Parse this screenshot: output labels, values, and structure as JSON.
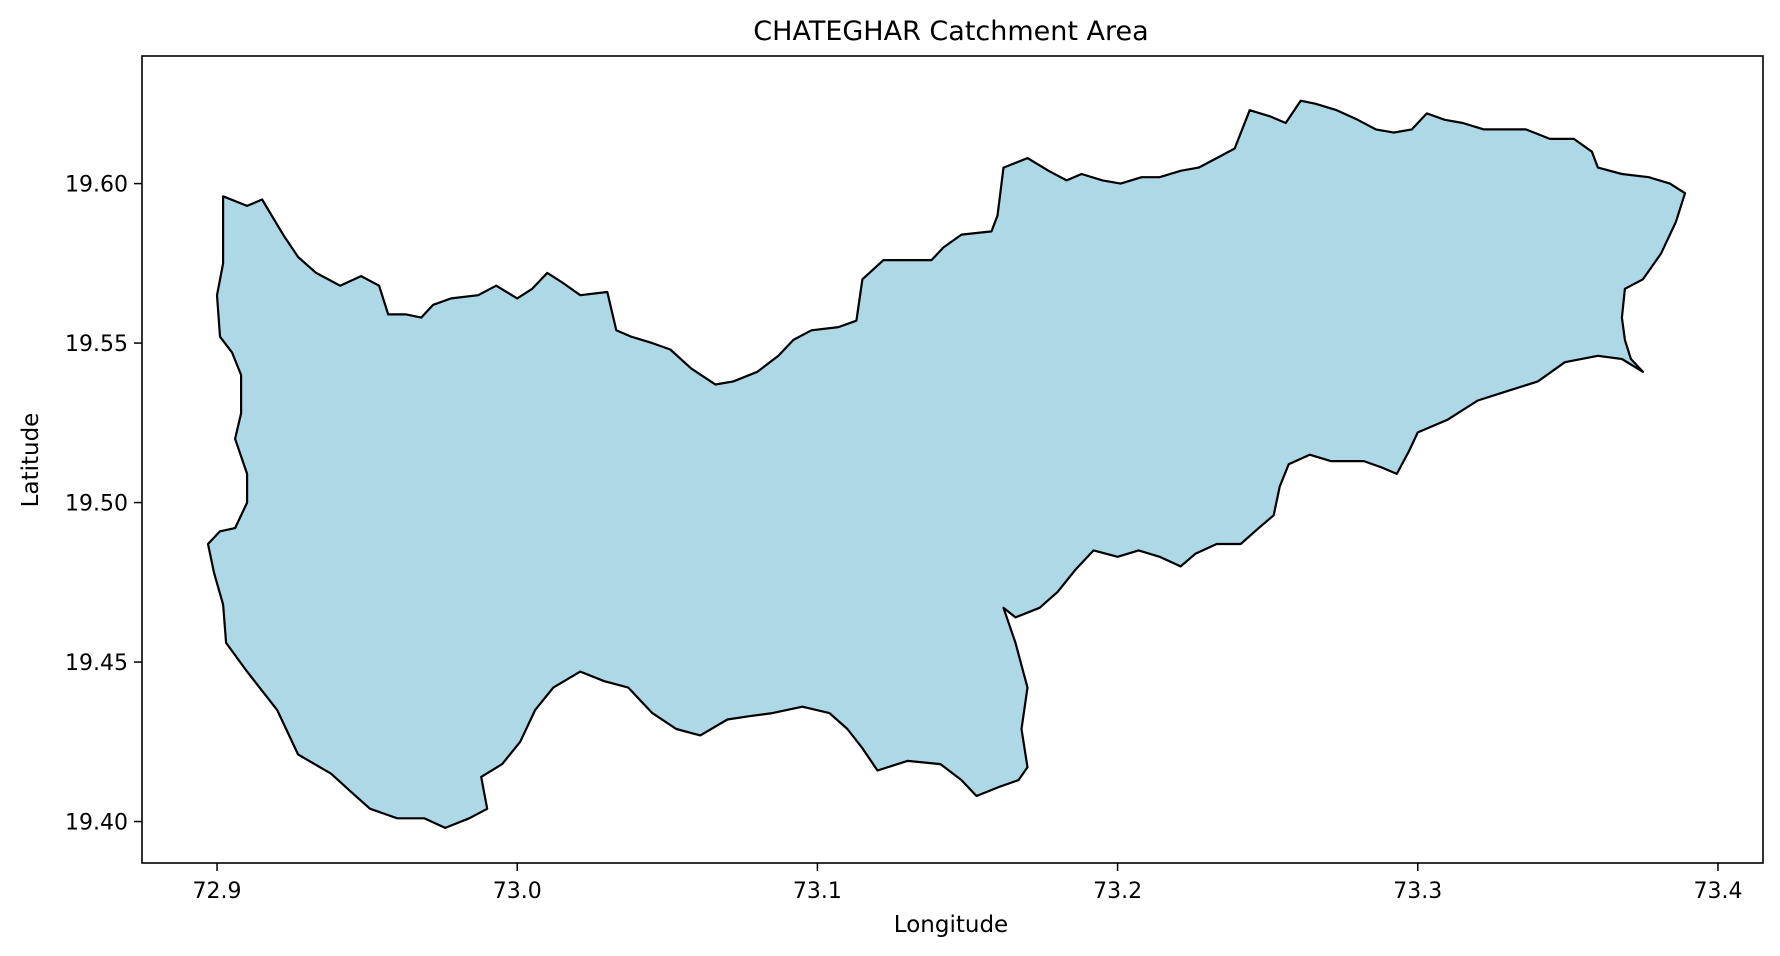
{
  "title": "CHATEGHAR Catchment Area",
  "xlabel": "Longitude",
  "ylabel": "Latitude",
  "x_ticks": [
    "72.9",
    "73.0",
    "73.1",
    "73.2",
    "73.3",
    "73.4"
  ],
  "y_ticks": [
    "19.40",
    "19.45",
    "19.50",
    "19.55",
    "19.60"
  ],
  "colors": {
    "fill": "#add8e6",
    "outline": "#000000"
  },
  "map_data": {
    "type": "polygon",
    "xlim": [
      72.875,
      73.415
    ],
    "ylim": [
      19.387,
      19.64
    ],
    "x_tick_values": [
      72.9,
      73.0,
      73.1,
      73.2,
      73.3,
      73.4
    ],
    "y_tick_values": [
      19.4,
      19.45,
      19.5,
      19.55,
      19.6
    ],
    "boundary": [
      [
        72.902,
        19.596
      ],
      [
        72.91,
        19.593
      ],
      [
        72.915,
        19.595
      ],
      [
        72.922,
        19.584
      ],
      [
        72.927,
        19.577
      ],
      [
        72.933,
        19.572
      ],
      [
        72.941,
        19.568
      ],
      [
        72.948,
        19.571
      ],
      [
        72.954,
        19.568
      ],
      [
        72.957,
        19.559
      ],
      [
        72.963,
        19.559
      ],
      [
        72.968,
        19.558
      ],
      [
        72.972,
        19.562
      ],
      [
        72.978,
        19.564
      ],
      [
        72.987,
        19.565
      ],
      [
        72.993,
        19.568
      ],
      [
        73.0,
        19.564
      ],
      [
        73.005,
        19.567
      ],
      [
        73.01,
        19.572
      ],
      [
        73.015,
        19.569
      ],
      [
        73.021,
        19.565
      ],
      [
        73.03,
        19.566
      ],
      [
        73.033,
        19.554
      ],
      [
        73.038,
        19.552
      ],
      [
        73.045,
        19.55
      ],
      [
        73.051,
        19.548
      ],
      [
        73.058,
        19.542
      ],
      [
        73.066,
        19.537
      ],
      [
        73.072,
        19.538
      ],
      [
        73.08,
        19.541
      ],
      [
        73.087,
        19.546
      ],
      [
        73.092,
        19.551
      ],
      [
        73.098,
        19.554
      ],
      [
        73.107,
        19.555
      ],
      [
        73.113,
        19.557
      ],
      [
        73.115,
        19.57
      ],
      [
        73.122,
        19.576
      ],
      [
        73.131,
        19.576
      ],
      [
        73.138,
        19.576
      ],
      [
        73.142,
        19.58
      ],
      [
        73.148,
        19.584
      ],
      [
        73.158,
        19.585
      ],
      [
        73.16,
        19.59
      ],
      [
        73.162,
        19.605
      ],
      [
        73.17,
        19.608
      ],
      [
        73.177,
        19.604
      ],
      [
        73.183,
        19.601
      ],
      [
        73.188,
        19.603
      ],
      [
        73.195,
        19.601
      ],
      [
        73.201,
        19.6
      ],
      [
        73.208,
        19.602
      ],
      [
        73.214,
        19.602
      ],
      [
        73.221,
        19.604
      ],
      [
        73.227,
        19.605
      ],
      [
        73.233,
        19.608
      ],
      [
        73.239,
        19.611
      ],
      [
        73.244,
        19.623
      ],
      [
        73.251,
        19.621
      ],
      [
        73.256,
        19.619
      ],
      [
        73.261,
        19.626
      ],
      [
        73.266,
        19.625
      ],
      [
        73.273,
        19.623
      ],
      [
        73.28,
        19.62
      ],
      [
        73.286,
        19.617
      ],
      [
        73.292,
        19.616
      ],
      [
        73.298,
        19.617
      ],
      [
        73.303,
        19.622
      ],
      [
        73.309,
        19.62
      ],
      [
        73.315,
        19.619
      ],
      [
        73.322,
        19.617
      ],
      [
        73.33,
        19.617
      ],
      [
        73.336,
        19.617
      ],
      [
        73.344,
        19.614
      ],
      [
        73.352,
        19.614
      ],
      [
        73.358,
        19.61
      ],
      [
        73.36,
        19.605
      ],
      [
        73.368,
        19.603
      ],
      [
        73.377,
        19.602
      ],
      [
        73.384,
        19.6
      ],
      [
        73.389,
        19.597
      ],
      [
        73.386,
        19.588
      ],
      [
        73.381,
        19.578
      ],
      [
        73.375,
        19.57
      ],
      [
        73.369,
        19.567
      ],
      [
        73.368,
        19.558
      ],
      [
        73.369,
        19.551
      ],
      [
        73.371,
        19.545
      ],
      [
        73.375,
        19.541
      ],
      [
        73.368,
        19.545
      ],
      [
        73.36,
        19.546
      ],
      [
        73.349,
        19.544
      ],
      [
        73.34,
        19.538
      ],
      [
        73.33,
        19.535
      ],
      [
        73.32,
        19.532
      ],
      [
        73.31,
        19.526
      ],
      [
        73.3,
        19.522
      ],
      [
        73.297,
        19.516
      ],
      [
        73.293,
        19.509
      ],
      [
        73.288,
        19.511
      ],
      [
        73.282,
        19.513
      ],
      [
        73.271,
        19.513
      ],
      [
        73.264,
        19.515
      ],
      [
        73.257,
        19.512
      ],
      [
        73.254,
        19.505
      ],
      [
        73.252,
        19.496
      ],
      [
        73.247,
        19.492
      ],
      [
        73.241,
        19.487
      ],
      [
        73.233,
        19.487
      ],
      [
        73.226,
        19.484
      ],
      [
        73.221,
        19.48
      ],
      [
        73.214,
        19.483
      ],
      [
        73.207,
        19.485
      ],
      [
        73.2,
        19.483
      ],
      [
        73.192,
        19.485
      ],
      [
        73.186,
        19.479
      ],
      [
        73.18,
        19.472
      ],
      [
        73.174,
        19.467
      ],
      [
        73.166,
        19.464
      ],
      [
        73.162,
        19.467
      ],
      [
        73.166,
        19.456
      ],
      [
        73.17,
        19.442
      ],
      [
        73.168,
        19.429
      ],
      [
        73.17,
        19.417
      ],
      [
        73.167,
        19.413
      ],
      [
        73.161,
        19.411
      ],
      [
        73.153,
        19.408
      ],
      [
        73.148,
        19.413
      ],
      [
        73.141,
        19.418
      ],
      [
        73.13,
        19.419
      ],
      [
        73.12,
        19.416
      ],
      [
        73.115,
        19.423
      ],
      [
        73.11,
        19.429
      ],
      [
        73.104,
        19.434
      ],
      [
        73.095,
        19.436
      ],
      [
        73.085,
        19.434
      ],
      [
        73.077,
        19.433
      ],
      [
        73.07,
        19.432
      ],
      [
        73.061,
        19.427
      ],
      [
        73.053,
        19.429
      ],
      [
        73.045,
        19.434
      ],
      [
        73.037,
        19.442
      ],
      [
        73.029,
        19.444
      ],
      [
        73.021,
        19.447
      ],
      [
        73.012,
        19.442
      ],
      [
        73.006,
        19.435
      ],
      [
        73.001,
        19.425
      ],
      [
        72.995,
        19.418
      ],
      [
        72.988,
        19.414
      ],
      [
        72.99,
        19.404
      ],
      [
        72.984,
        19.401
      ],
      [
        72.976,
        19.398
      ],
      [
        72.969,
        19.401
      ],
      [
        72.96,
        19.401
      ],
      [
        72.951,
        19.404
      ],
      [
        72.945,
        19.409
      ],
      [
        72.938,
        19.415
      ],
      [
        72.927,
        19.421
      ],
      [
        72.92,
        19.435
      ],
      [
        72.91,
        19.447
      ],
      [
        72.903,
        19.456
      ],
      [
        72.902,
        19.468
      ],
      [
        72.899,
        19.478
      ],
      [
        72.897,
        19.487
      ],
      [
        72.901,
        19.491
      ],
      [
        72.906,
        19.492
      ],
      [
        72.91,
        19.5
      ],
      [
        72.91,
        19.509
      ],
      [
        72.906,
        19.52
      ],
      [
        72.908,
        19.528
      ],
      [
        72.908,
        19.54
      ],
      [
        72.905,
        19.547
      ],
      [
        72.901,
        19.552
      ],
      [
        72.9,
        19.565
      ],
      [
        72.902,
        19.575
      ],
      [
        72.902,
        19.596
      ]
    ]
  }
}
